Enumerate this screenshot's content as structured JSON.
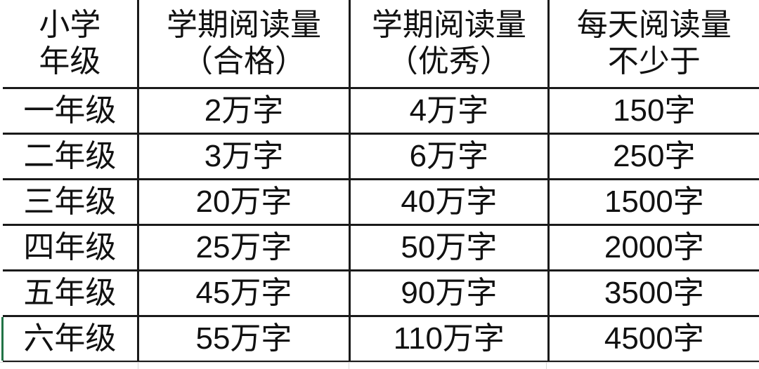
{
  "table": {
    "headers": [
      [
        "小学",
        "年级"
      ],
      [
        "学期阅读量",
        "（合格）"
      ],
      [
        "学期阅读量",
        "（优秀）"
      ],
      [
        "每天阅读量",
        "不少于"
      ]
    ],
    "rows": [
      [
        "一年级",
        "2万字",
        "4万字",
        "150字"
      ],
      [
        "二年级",
        "3万字",
        "6万字",
        "250字"
      ],
      [
        "三年级",
        "20万字",
        "40万字",
        "1500字"
      ],
      [
        "四年级",
        "25万字",
        "50万字",
        "2000字"
      ],
      [
        "五年级",
        "45万字",
        "90万字",
        "3500字"
      ],
      [
        "六年级",
        "55万字",
        "110万字",
        "4500字"
      ]
    ]
  }
}
